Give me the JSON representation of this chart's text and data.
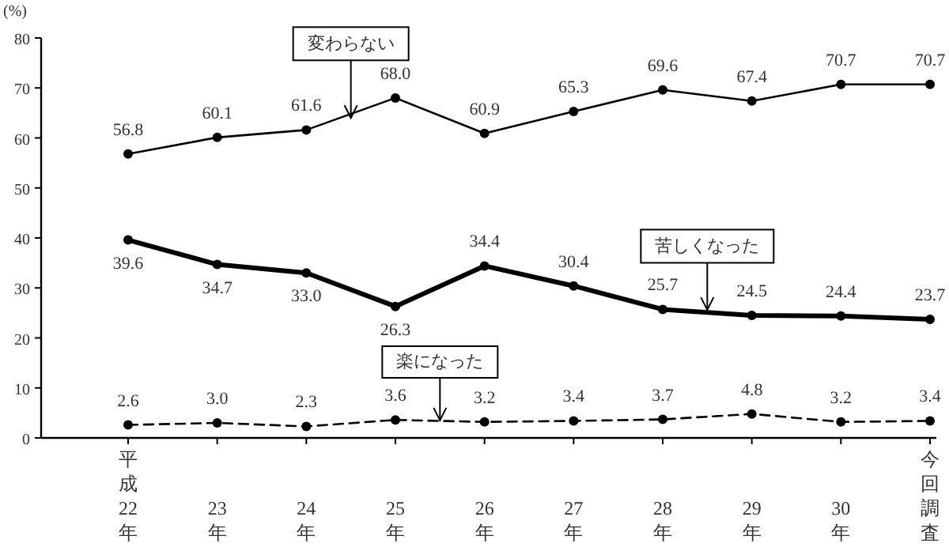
{
  "chart_data": {
    "type": "line",
    "ylabel": "(%)",
    "categories": [
      "平成22年",
      "23年",
      "24年",
      "25年",
      "26年",
      "27年",
      "28年",
      "29年",
      "30年",
      "今回調査"
    ],
    "ylim": [
      0,
      80
    ],
    "yticks": [
      0,
      10,
      20,
      30,
      40,
      50,
      60,
      70,
      80
    ],
    "marker": "circle",
    "grid": false,
    "series": [
      {
        "name": "変わらない",
        "color": "#000000",
        "line_style": "solid",
        "values": [
          56.8,
          60.1,
          61.6,
          68.0,
          60.9,
          65.3,
          69.6,
          67.4,
          70.7,
          70.7
        ],
        "value_labels": [
          "56.8",
          "60.1",
          "61.6",
          "68.0",
          "60.9",
          "65.3",
          "69.6",
          "67.4",
          "70.7",
          "70.7"
        ]
      },
      {
        "name": "苦しくなった",
        "color": "#000000",
        "line_style": "solid",
        "values": [
          39.6,
          34.7,
          33.0,
          26.3,
          34.4,
          30.4,
          25.7,
          24.5,
          24.4,
          23.7
        ],
        "value_labels": [
          "39.6",
          "34.7",
          "33.0",
          "26.3",
          "34.4",
          "30.4",
          "25.7",
          "24.5",
          "24.4",
          "23.7"
        ]
      },
      {
        "name": "楽になった",
        "color": "#000000",
        "line_style": "dashed",
        "values": [
          2.6,
          3.0,
          2.3,
          3.6,
          3.2,
          3.4,
          3.7,
          4.8,
          3.2,
          3.4
        ],
        "value_labels": [
          "2.6",
          "3.0",
          "2.3",
          "3.6",
          "3.2",
          "3.4",
          "3.7",
          "4.8",
          "3.2",
          "3.4"
        ]
      }
    ]
  }
}
